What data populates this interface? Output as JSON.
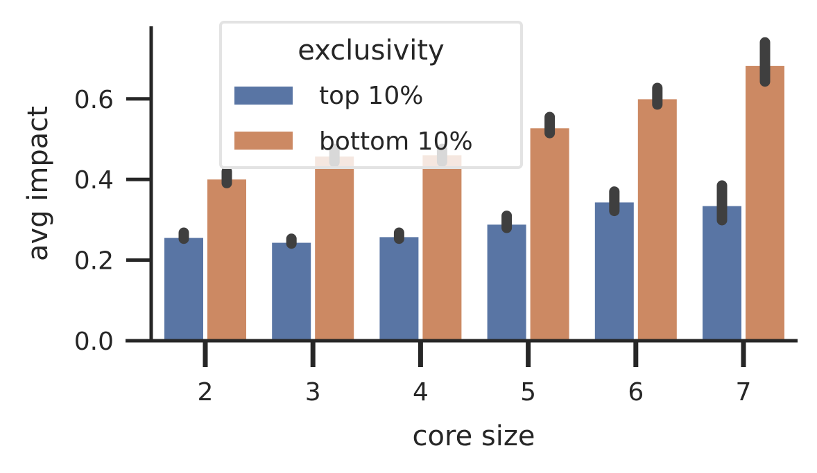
{
  "chart_data": {
    "type": "bar",
    "title": "",
    "xlabel": "core size",
    "ylabel": "avg impact",
    "categories": [
      "2",
      "3",
      "4",
      "5",
      "6",
      "7"
    ],
    "ylim": [
      0,
      0.78
    ],
    "yticks": [
      0.0,
      0.2,
      0.4,
      0.6
    ],
    "ytick_labels": [
      "0.0",
      "0.2",
      "0.4",
      "0.6"
    ],
    "grid": false,
    "legend": {
      "title": "exclusivity",
      "placement": "top-left",
      "entries": [
        "top 10%",
        "bottom 10%"
      ]
    },
    "series": [
      {
        "name": "top 10%",
        "color": "#5975a4",
        "values": [
          0.255,
          0.243,
          0.257,
          0.288,
          0.343,
          0.334
        ],
        "ci_low": [
          0.253,
          0.241,
          0.253,
          0.28,
          0.322,
          0.299
        ],
        "ci_high": [
          0.268,
          0.253,
          0.268,
          0.31,
          0.37,
          0.385
        ]
      },
      {
        "name": "bottom 10%",
        "color": "#cc8963",
        "values": [
          0.4,
          0.457,
          0.46,
          0.527,
          0.599,
          0.682
        ],
        "ci_low": [
          0.391,
          0.443,
          0.444,
          0.515,
          0.586,
          0.643
        ],
        "ci_high": [
          0.42,
          0.476,
          0.476,
          0.555,
          0.627,
          0.74
        ]
      }
    ],
    "error_bar_color": "#3f3f3f"
  }
}
